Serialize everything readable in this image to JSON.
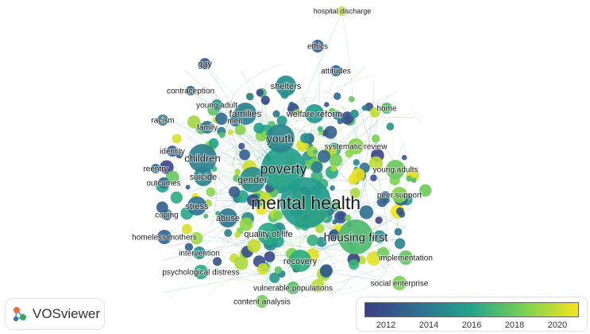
{
  "app": {
    "name": "VOSviewer"
  },
  "colors": {
    "scale": [
      "#3b3f87",
      "#2f6f91",
      "#22a48b",
      "#7cd250",
      "#f3e41b"
    ],
    "link": "#9fd8c8"
  },
  "legend": {
    "tick_labels": [
      "2012",
      "2014",
      "2016",
      "2018",
      "2020"
    ],
    "tick_values": [
      2012,
      2014,
      2016,
      2018,
      2020
    ],
    "range": [
      2011,
      2021
    ]
  },
  "terms": [
    {
      "label": "mental health",
      "year": 2015.6,
      "weight": 10
    },
    {
      "label": "poverty",
      "year": 2015.8,
      "weight": 7
    },
    {
      "label": "housing first",
      "year": 2017.2,
      "weight": 6
    },
    {
      "label": "youth",
      "year": 2014.6,
      "weight": 5
    },
    {
      "label": "children",
      "year": 2014.3,
      "weight": 4.5
    },
    {
      "label": "gender",
      "year": 2014.9,
      "weight": 4
    },
    {
      "label": "quality of life",
      "year": 2016.2,
      "weight": 3.5
    },
    {
      "label": "families",
      "year": 2014.4,
      "weight": 3.5
    },
    {
      "label": "shelters",
      "year": 2015.0,
      "weight": 3.5
    },
    {
      "label": "welfare reform",
      "year": 2015.5,
      "weight": 3
    },
    {
      "label": "suicide",
      "year": 2014.6,
      "weight": 3
    },
    {
      "label": "stress",
      "year": 2013.7,
      "weight": 3
    },
    {
      "label": "abuse",
      "year": 2013.9,
      "weight": 3
    },
    {
      "label": "recovery",
      "year": 2016.4,
      "weight": 3
    },
    {
      "label": "systematic review",
      "year": 2018.8,
      "weight": 2.5
    },
    {
      "label": "young adults",
      "year": 2018.0,
      "weight": 2.5
    },
    {
      "label": "peer support",
      "year": 2018.6,
      "weight": 2.5
    },
    {
      "label": "implementation",
      "year": 2017.8,
      "weight": 2.5
    },
    {
      "label": "social enterprise",
      "year": 2018.4,
      "weight": 2.5
    },
    {
      "label": "vulnerable populations",
      "year": 2017.6,
      "weight": 2.5
    },
    {
      "label": "homeless mothers",
      "year": 2013.0,
      "weight": 2.5
    },
    {
      "label": "intervention",
      "year": 2015.1,
      "weight": 2.5
    },
    {
      "label": "psychological distress",
      "year": 2016.3,
      "weight": 2.5
    },
    {
      "label": "content analysis",
      "year": 2018.3,
      "weight": 2
    },
    {
      "label": "hospital discharge",
      "year": 2020.0,
      "weight": 2
    },
    {
      "label": "ethics",
      "year": 2012.4,
      "weight": 2
    },
    {
      "label": "attitudes",
      "year": 2013.4,
      "weight": 2
    },
    {
      "label": "home",
      "year": 2017.4,
      "weight": 2
    },
    {
      "label": "gay",
      "year": 2012.6,
      "weight": 2
    },
    {
      "label": "contraception",
      "year": 2013.3,
      "weight": 2
    },
    {
      "label": "young adult",
      "year": 2015.4,
      "weight": 2
    },
    {
      "label": "racism",
      "year": 2014.2,
      "weight": 2
    },
    {
      "label": "men",
      "year": 2013.3,
      "weight": 2
    },
    {
      "label": "family",
      "year": 2013.8,
      "weight": 2
    },
    {
      "label": "identity",
      "year": 2013.0,
      "weight": 2
    },
    {
      "label": "reentry",
      "year": 2013.6,
      "weight": 2
    },
    {
      "label": "outcomes",
      "year": 2013.2,
      "weight": 2
    },
    {
      "label": "coping",
      "year": 2013.4,
      "weight": 2
    }
  ]
}
